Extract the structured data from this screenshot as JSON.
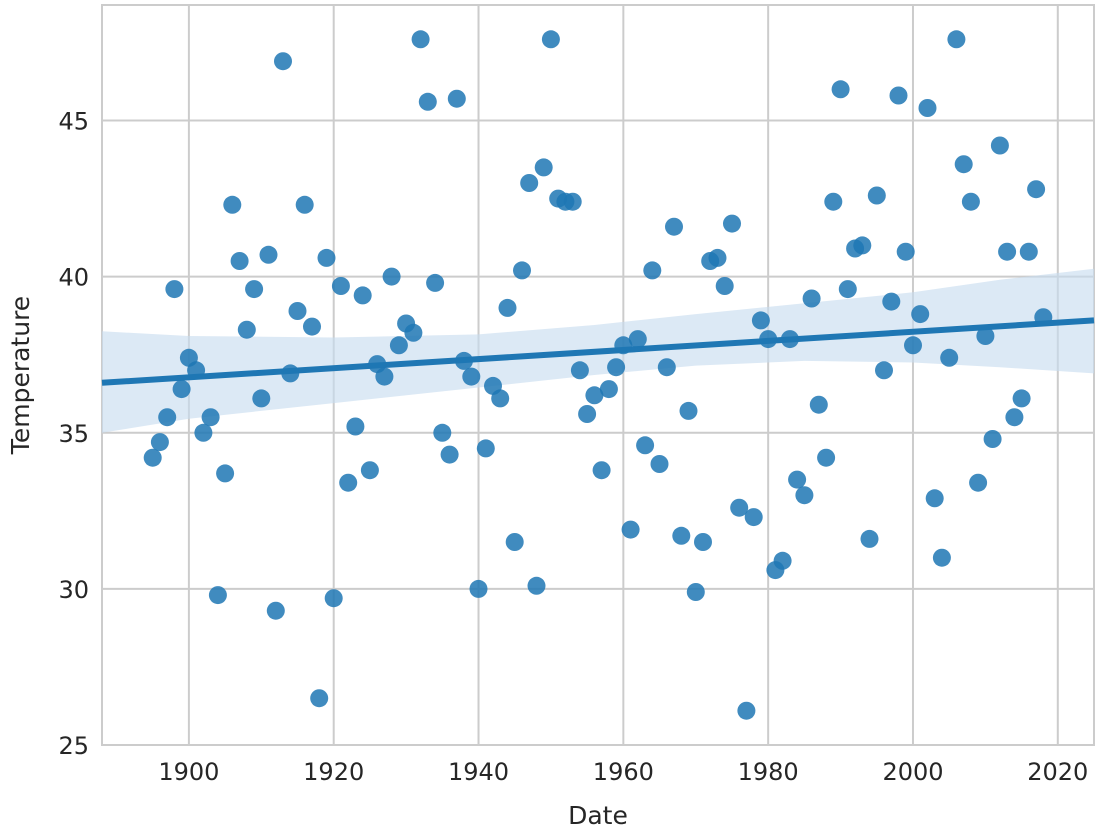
{
  "chart_data": {
    "type": "scatter",
    "title": "",
    "xlabel": "Date",
    "ylabel": "Temperature",
    "xlim": [
      1888,
      2025
    ],
    "ylim": [
      25,
      48.7
    ],
    "xticks": [
      1900,
      1920,
      1940,
      1960,
      1980,
      2000,
      2020
    ],
    "yticks": [
      25,
      30,
      35,
      40,
      45
    ],
    "grid": true,
    "colors": {
      "points": "#1f77b4",
      "regression_line": "#1f77b4",
      "confidence_band": "#c6dbef",
      "grid": "#cccccc",
      "background": "#ffffff"
    },
    "series": [
      {
        "x": [
          1895,
          1896,
          1897,
          1898,
          1899,
          1900,
          1901,
          1902,
          1903,
          1904,
          1905,
          1906,
          1907,
          1908,
          1909,
          1910,
          1911,
          1912,
          1913,
          1914,
          1915,
          1916,
          1917,
          1918,
          1919,
          1920,
          1921,
          1922,
          1923,
          1924,
          1925,
          1926,
          1927,
          1928,
          1929,
          1930,
          1931,
          1932,
          1933,
          1934,
          1935,
          1936,
          1937,
          1938,
          1939,
          1940,
          1941,
          1942,
          1943,
          1944,
          1945,
          1946,
          1947,
          1948,
          1949,
          1950,
          1951,
          1952,
          1953,
          1954,
          1955,
          1956,
          1957,
          1958,
          1959,
          1960,
          1961,
          1962,
          1963,
          1964,
          1965,
          1966,
          1967,
          1968,
          1969,
          1970,
          1971,
          1972,
          1973,
          1974,
          1975,
          1976,
          1977,
          1978,
          1979,
          1980,
          1981,
          1982,
          1983,
          1984,
          1985,
          1986,
          1987,
          1988,
          1989,
          1990,
          1991,
          1992,
          1993,
          1994,
          1995,
          1996,
          1997,
          1998,
          1999,
          2000,
          2001,
          2002,
          2003,
          2004,
          2005,
          2006,
          2007,
          2008,
          2009,
          2010,
          2011,
          2012,
          2013,
          2014,
          2015,
          2016,
          2017,
          2018
        ],
        "y": [
          34.2,
          34.7,
          35.5,
          39.6,
          36.4,
          37.4,
          37.0,
          35.0,
          35.5,
          29.8,
          33.7,
          42.3,
          40.5,
          38.3,
          39.6,
          36.1,
          40.7,
          29.3,
          46.9,
          36.9,
          38.9,
          42.3,
          38.4,
          26.5,
          40.6,
          29.7,
          39.7,
          33.4,
          35.2,
          39.4,
          33.8,
          37.2,
          36.8,
          40.0,
          37.8,
          38.5,
          38.2,
          47.6,
          45.6,
          39.8,
          35.0,
          34.3,
          45.7,
          37.3,
          36.8,
          30.0,
          34.5,
          36.5,
          36.1,
          39.0,
          31.5,
          40.2,
          43.0,
          30.1,
          43.5,
          47.6,
          42.5,
          42.4,
          42.4,
          37.0,
          35.6,
          36.2,
          33.8,
          36.4,
          37.1,
          37.8,
          31.9,
          38.0,
          34.6,
          40.2,
          34.0,
          37.1,
          41.6,
          31.7,
          35.7,
          29.9,
          31.5,
          40.5,
          40.6,
          39.7,
          41.7,
          32.6,
          26.1,
          32.3,
          38.6,
          38.0,
          30.6,
          30.9,
          38.0,
          33.5,
          33.0,
          39.3,
          35.9,
          34.2,
          42.4,
          46.0,
          39.6,
          40.9,
          41.0,
          31.6,
          42.6,
          37.0,
          39.2,
          45.8,
          40.8,
          37.8,
          38.8,
          45.4,
          32.9,
          31.0,
          37.4,
          47.6,
          43.6,
          42.4,
          33.4,
          38.1,
          34.8,
          44.2,
          40.8,
          35.5,
          36.1,
          40.8,
          42.8,
          38.7
        ]
      }
    ],
    "regression": {
      "x": [
        1888,
        2025
      ],
      "y": [
        36.6,
        38.6
      ]
    },
    "confidence_band": {
      "x": [
        1888,
        1900,
        1920,
        1940,
        1956,
        1970,
        1985,
        2000,
        2012,
        2025
      ],
      "upper": [
        38.25,
        38.1,
        38.05,
        38.15,
        38.45,
        38.8,
        39.15,
        39.5,
        39.9,
        40.25
      ],
      "lower": [
        35.0,
        35.45,
        35.95,
        36.45,
        36.85,
        37.15,
        37.3,
        37.25,
        37.1,
        36.9
      ]
    }
  }
}
